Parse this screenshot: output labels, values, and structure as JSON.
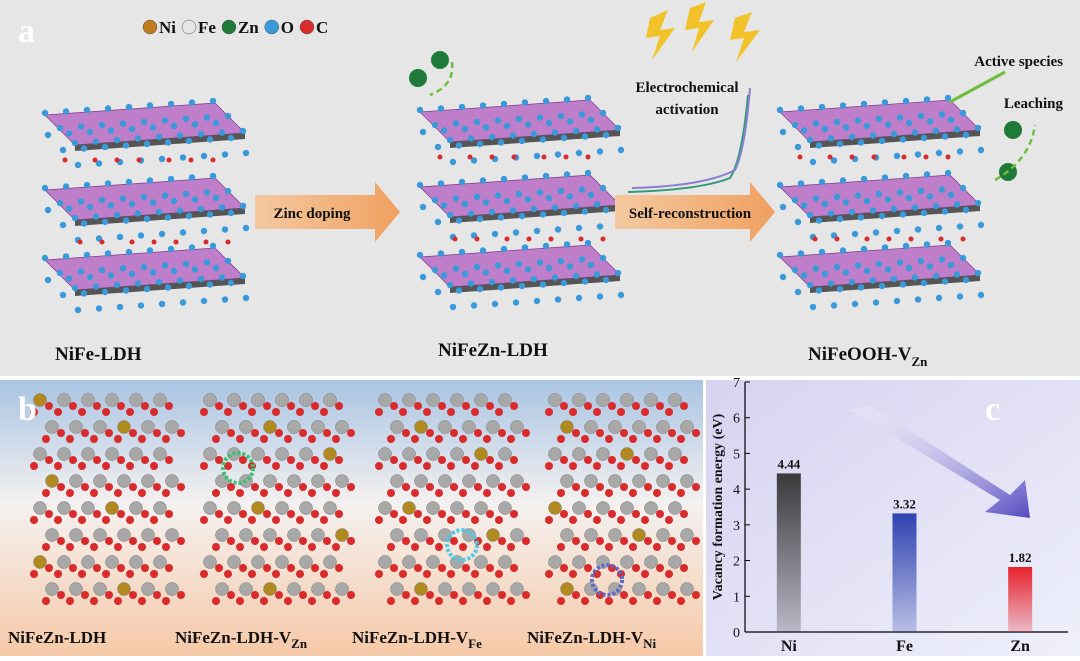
{
  "panel_a": {
    "label": "a",
    "legend": [
      {
        "name": "Ni",
        "color": "#c07a1e"
      },
      {
        "name": "Fe",
        "color": "#e6e6e6"
      },
      {
        "name": "Zn",
        "color": "#1f7a3a"
      },
      {
        "name": "O",
        "color": "#3a9ad9"
      },
      {
        "name": "C",
        "color": "#d92b2b"
      }
    ],
    "step1": "Zinc doping",
    "step2": "Self-reconstruction",
    "activation": [
      "Electrochemical",
      "activation"
    ],
    "active_species": "Active species",
    "leaching": "Leaching",
    "structures": [
      {
        "base": "NiFe-LDH"
      },
      {
        "base": "NiFeZn-LDH"
      },
      {
        "base": "NiFeOOH-V",
        "sub": "Zn"
      }
    ]
  },
  "panel_b": {
    "label": "b",
    "structures": [
      {
        "base": "NiFeZn-LDH"
      },
      {
        "base": "NiFeZn-LDH-V",
        "sub": "Zn"
      },
      {
        "base": "NiFeZn-LDH-V",
        "sub": "Fe"
      },
      {
        "base": "NiFeZn-LDH-V",
        "sub": "Ni"
      }
    ]
  },
  "chart_data": {
    "type": "bar",
    "panel_label": "c",
    "y_label": "Vacancy formation energy (eV)",
    "categories": [
      "Ni",
      "Fe",
      "Zn"
    ],
    "values": [
      4.44,
      3.32,
      1.82
    ],
    "colors": [
      "#3a3a3a",
      "#2f43b0",
      "#e8232c"
    ],
    "ylim": [
      0,
      7
    ],
    "yticks": [
      0,
      1,
      2,
      3,
      4,
      5,
      6,
      7
    ]
  }
}
